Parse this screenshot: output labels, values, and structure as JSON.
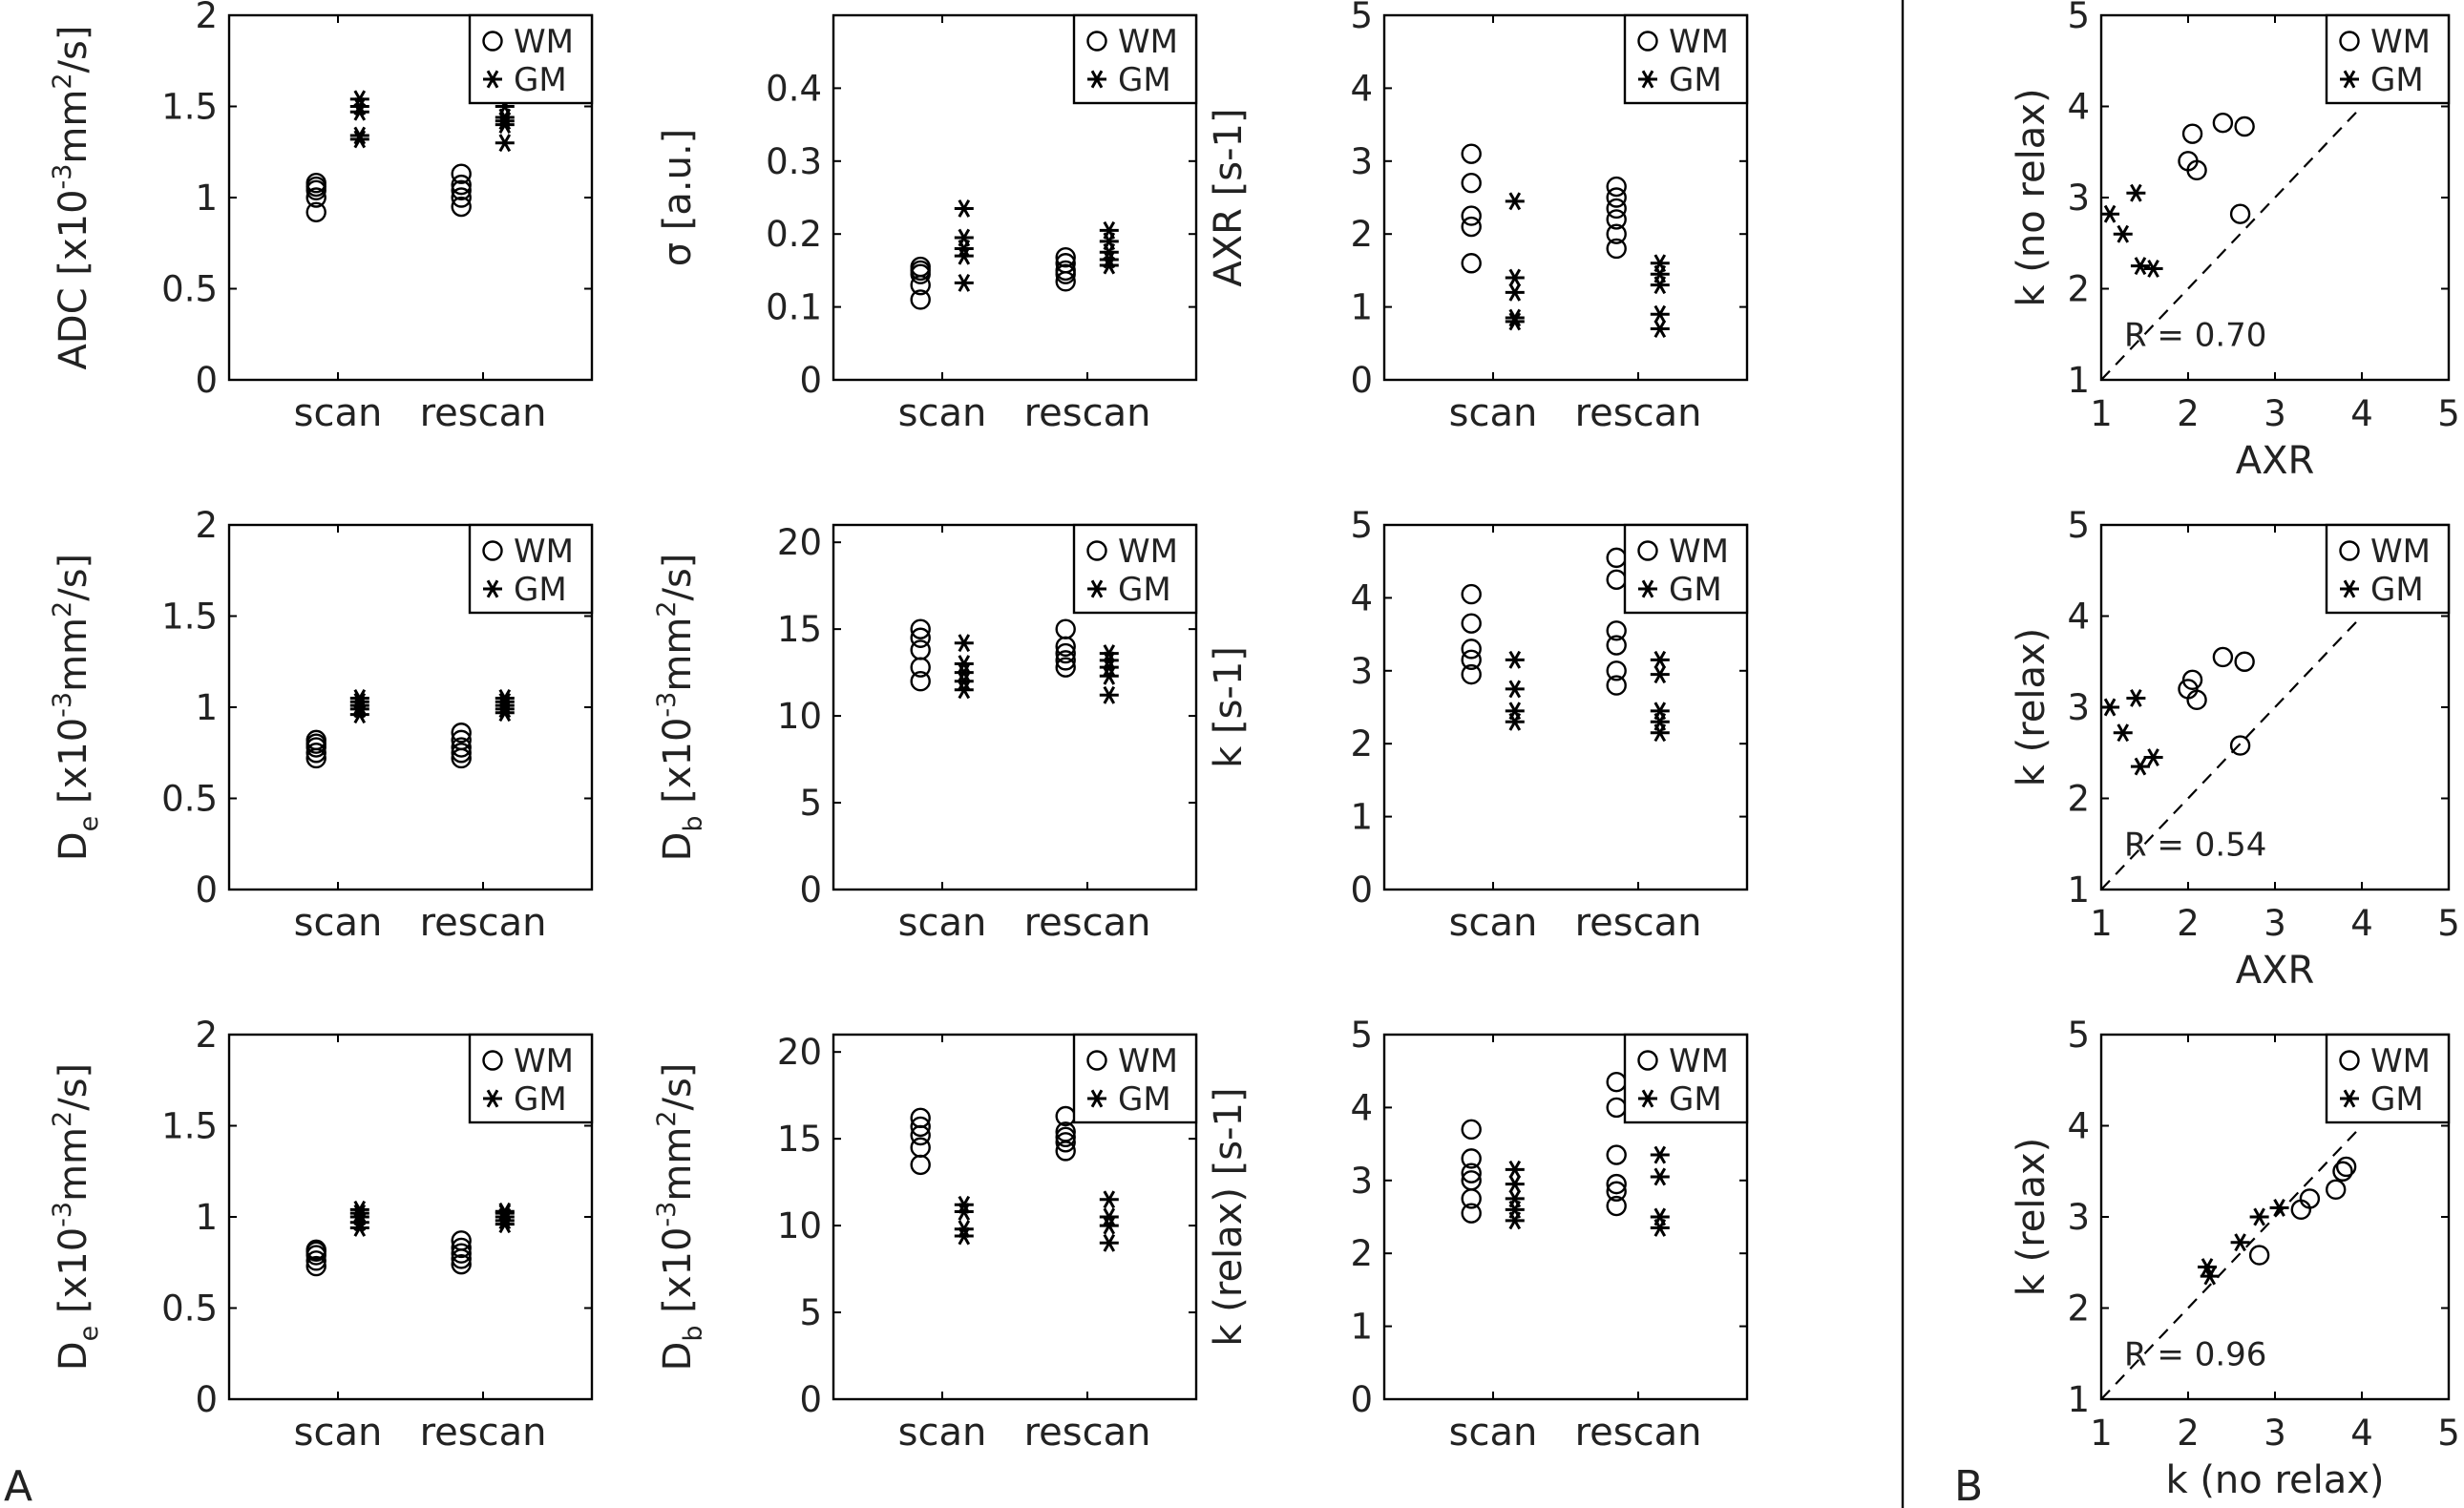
{
  "panel_labels": {
    "A": "A",
    "B": "B"
  },
  "legend": {
    "wm": "WM",
    "gm": "GM"
  },
  "chart_data": [
    {
      "type": "scatter",
      "ylabel_main": "ADC [x10",
      "ylabel_sup1": "-3",
      "ylabel_rest": "mm",
      "ylabel_sup2": "2",
      "ylabel_end": "/s]",
      "ylim": [
        0,
        2
      ],
      "yticks": [
        0,
        0.5,
        1,
        1.5,
        2
      ],
      "ytick_labels": [
        "0",
        "0.5",
        "1",
        "1.5",
        "2"
      ],
      "categories": [
        "scan",
        "rescan"
      ],
      "series": [
        {
          "name": "WM",
          "marker": "o",
          "values": [
            [
              0.92,
              1.0,
              1.04,
              1.06,
              1.08
            ],
            [
              0.95,
              1.0,
              1.04,
              1.07,
              1.13
            ]
          ]
        },
        {
          "name": "GM",
          "marker": "*",
          "values": [
            [
              1.32,
              1.34,
              1.47,
              1.5,
              1.54
            ],
            [
              1.3,
              1.4,
              1.42,
              1.44,
              1.5
            ]
          ]
        }
      ]
    },
    {
      "type": "scatter",
      "ylabel": "σ [a.u.]",
      "ylim": [
        0,
        0.5
      ],
      "yticks": [
        0,
        0.1,
        0.2,
        0.3,
        0.4
      ],
      "ytick_labels": [
        "0",
        "0.1",
        "0.2",
        "0.3",
        "0.4"
      ],
      "categories": [
        "scan",
        "rescan"
      ],
      "series": [
        {
          "name": "WM",
          "marker": "o",
          "values": [
            [
              0.11,
              0.13,
              0.145,
              0.15,
              0.155
            ],
            [
              0.135,
              0.145,
              0.15,
              0.16,
              0.168
            ]
          ]
        },
        {
          "name": "GM",
          "marker": "*",
          "values": [
            [
              0.133,
              0.17,
              0.18,
              0.195,
              0.235
            ],
            [
              0.157,
              0.165,
              0.175,
              0.19,
              0.205
            ]
          ]
        }
      ]
    },
    {
      "type": "scatter",
      "ylabel": "AXR [s-1]",
      "ylim": [
        0,
        5
      ],
      "yticks": [
        0,
        1,
        2,
        3,
        4,
        5
      ],
      "ytick_labels": [
        "0",
        "1",
        "2",
        "3",
        "4",
        "5"
      ],
      "categories": [
        "scan",
        "rescan"
      ],
      "series": [
        {
          "name": "WM",
          "marker": "o",
          "values": [
            [
              1.6,
              2.1,
              2.25,
              2.7,
              3.1
            ],
            [
              1.8,
              2.0,
              2.2,
              2.35,
              2.5,
              2.65
            ]
          ]
        },
        {
          "name": "GM",
          "marker": "*",
          "values": [
            [
              0.8,
              0.85,
              1.2,
              1.4,
              2.45
            ],
            [
              0.7,
              0.9,
              1.3,
              1.45,
              1.6
            ]
          ]
        }
      ]
    },
    {
      "type": "scatter",
      "ylabel_main": "D",
      "ylabel_sub": "e",
      "ylabel_mid": " [x10",
      "ylabel_sup1": "-3",
      "ylabel_rest": "mm",
      "ylabel_sup2": "2",
      "ylabel_end": "/s]",
      "ylim": [
        0,
        2
      ],
      "yticks": [
        0,
        0.5,
        1,
        1.5,
        2
      ],
      "ytick_labels": [
        "0",
        "0.5",
        "1",
        "1.5",
        "2"
      ],
      "categories": [
        "scan",
        "rescan"
      ],
      "series": [
        {
          "name": "WM",
          "marker": "o",
          "values": [
            [
              0.72,
              0.75,
              0.78,
              0.8,
              0.82
            ],
            [
              0.72,
              0.75,
              0.78,
              0.82,
              0.86
            ]
          ]
        },
        {
          "name": "GM",
          "marker": "*",
          "values": [
            [
              0.96,
              0.99,
              1.01,
              1.03,
              1.05
            ],
            [
              0.97,
              0.99,
              1.01,
              1.03,
              1.05
            ]
          ]
        }
      ]
    },
    {
      "type": "scatter",
      "ylabel_main": "D",
      "ylabel_sub": "b",
      "ylabel_mid": " [x10",
      "ylabel_sup1": "-3",
      "ylabel_rest": "mm",
      "ylabel_sup2": "2",
      "ylabel_end": "/s]",
      "ylim": [
        0,
        21
      ],
      "yticks": [
        0,
        5,
        10,
        15,
        20
      ],
      "ytick_labels": [
        "0",
        "5",
        "10",
        "15",
        "20"
      ],
      "categories": [
        "scan",
        "rescan"
      ],
      "series": [
        {
          "name": "WM",
          "marker": "o",
          "values": [
            [
              12.0,
              12.8,
              13.8,
              14.5,
              15.0
            ],
            [
              12.8,
              13.2,
              13.6,
              14.0,
              15.0
            ]
          ]
        },
        {
          "name": "GM",
          "marker": "*",
          "values": [
            [
              11.5,
              12.0,
              12.5,
              13.0,
              14.2
            ],
            [
              11.2,
              12.3,
              12.8,
              13.2,
              13.6
            ]
          ]
        }
      ]
    },
    {
      "type": "scatter",
      "ylabel": "k [s-1]",
      "ylim": [
        0,
        5
      ],
      "yticks": [
        0,
        1,
        2,
        3,
        4,
        5
      ],
      "ytick_labels": [
        "0",
        "1",
        "2",
        "3",
        "4",
        "5"
      ],
      "categories": [
        "scan",
        "rescan"
      ],
      "series": [
        {
          "name": "WM",
          "marker": "o",
          "values": [
            [
              2.95,
              3.15,
              3.3,
              3.65,
              4.05
            ],
            [
              2.8,
              3.0,
              3.35,
              3.55,
              4.25,
              4.55
            ]
          ]
        },
        {
          "name": "GM",
          "marker": "*",
          "values": [
            [
              2.3,
              2.45,
              2.75,
              3.15
            ],
            [
              2.15,
              2.3,
              2.45,
              2.95,
              3.15
            ]
          ]
        }
      ]
    },
    {
      "type": "scatter",
      "ylabel_main": "D",
      "ylabel_sub": "e",
      "ylabel_mid": " [x10",
      "ylabel_sup1": "-3",
      "ylabel_rest": "mm",
      "ylabel_sup2": "2",
      "ylabel_end": "/s]",
      "ylim": [
        0,
        2
      ],
      "yticks": [
        0,
        0.5,
        1,
        1.5,
        2
      ],
      "ytick_labels": [
        "0",
        "0.5",
        "1",
        "1.5",
        "2"
      ],
      "categories": [
        "scan",
        "rescan"
      ],
      "series": [
        {
          "name": "WM",
          "marker": "o",
          "values": [
            [
              0.73,
              0.76,
              0.79,
              0.81,
              0.82
            ],
            [
              0.74,
              0.77,
              0.8,
              0.83,
              0.87
            ]
          ]
        },
        {
          "name": "GM",
          "marker": "*",
          "values": [
            [
              0.94,
              0.97,
              1.0,
              1.02,
              1.04
            ],
            [
              0.96,
              0.98,
              1.0,
              1.02,
              1.03
            ]
          ]
        }
      ]
    },
    {
      "type": "scatter",
      "ylabel_main": "D",
      "ylabel_sub": "b",
      "ylabel_mid": " [x10",
      "ylabel_sup1": "-3",
      "ylabel_rest": "mm",
      "ylabel_sup2": "2",
      "ylabel_end": "/s]",
      "ylim": [
        0,
        21
      ],
      "yticks": [
        0,
        5,
        10,
        15,
        20
      ],
      "ytick_labels": [
        "0",
        "5",
        "10",
        "15",
        "20"
      ],
      "categories": [
        "scan",
        "rescan"
      ],
      "series": [
        {
          "name": "WM",
          "marker": "o",
          "values": [
            [
              13.5,
              14.5,
              15.2,
              15.7,
              16.2
            ],
            [
              14.3,
              14.8,
              15.1,
              15.4,
              16.3
            ]
          ]
        },
        {
          "name": "GM",
          "marker": "*",
          "values": [
            [
              9.4,
              9.8,
              10.8,
              11.2
            ],
            [
              9.0,
              10.0,
              10.5,
              11.5
            ]
          ]
        }
      ]
    },
    {
      "type": "scatter",
      "ylabel": "k (relax) [s-1]",
      "ylim": [
        0,
        5
      ],
      "yticks": [
        0,
        1,
        2,
        3,
        4,
        5
      ],
      "ytick_labels": [
        "0",
        "1",
        "2",
        "3",
        "4",
        "5"
      ],
      "categories": [
        "scan",
        "rescan"
      ],
      "series": [
        {
          "name": "WM",
          "marker": "o",
          "values": [
            [
              2.55,
              2.75,
              3.0,
              3.1,
              3.3,
              3.7
            ],
            [
              2.65,
              2.85,
              2.95,
              3.35,
              4.0,
              4.35
            ]
          ]
        },
        {
          "name": "GM",
          "marker": "*",
          "values": [
            [
              2.45,
              2.6,
              2.75,
              2.95,
              3.15
            ],
            [
              2.35,
              2.5,
              3.05,
              3.35
            ]
          ]
        }
      ]
    },
    {
      "type": "scatter",
      "xlabel": "AXR",
      "ylabel": "k (no relax)",
      "xlim": [
        1,
        5
      ],
      "ylim": [
        1,
        5
      ],
      "xticks": [
        1,
        2,
        3,
        4,
        5
      ],
      "yticks": [
        1,
        2,
        3,
        4,
        5
      ],
      "xtick_labels": [
        "1",
        "2",
        "3",
        "4",
        "5"
      ],
      "ytick_labels": [
        "1",
        "2",
        "3",
        "4",
        "5"
      ],
      "annotation": "R = 0.70",
      "identity_line": true,
      "series": [
        {
          "name": "WM",
          "marker": "o",
          "x": [
            2.0,
            2.05,
            2.1,
            2.4,
            2.6,
            2.65
          ],
          "y": [
            3.4,
            3.7,
            3.3,
            3.82,
            2.82,
            3.78
          ]
        },
        {
          "name": "GM",
          "marker": "*",
          "x": [
            1.1,
            1.25,
            1.4,
            1.45,
            1.6
          ],
          "y": [
            2.82,
            2.6,
            3.05,
            2.25,
            2.22
          ]
        }
      ]
    },
    {
      "type": "scatter",
      "xlabel": "AXR",
      "ylabel": "k (relax)",
      "xlim": [
        1,
        5
      ],
      "ylim": [
        1,
        5
      ],
      "xticks": [
        1,
        2,
        3,
        4,
        5
      ],
      "yticks": [
        1,
        2,
        3,
        4,
        5
      ],
      "xtick_labels": [
        "1",
        "2",
        "3",
        "4",
        "5"
      ],
      "ytick_labels": [
        "1",
        "2",
        "3",
        "4",
        "5"
      ],
      "annotation": "R = 0.54",
      "identity_line": true,
      "series": [
        {
          "name": "WM",
          "marker": "o",
          "x": [
            2.0,
            2.05,
            2.1,
            2.4,
            2.6,
            2.65
          ],
          "y": [
            3.2,
            3.3,
            3.08,
            3.55,
            2.58,
            3.5
          ]
        },
        {
          "name": "GM",
          "marker": "*",
          "x": [
            1.1,
            1.25,
            1.4,
            1.45,
            1.6
          ],
          "y": [
            3.0,
            2.72,
            3.1,
            2.35,
            2.45
          ]
        }
      ]
    },
    {
      "type": "scatter",
      "xlabel": "k (no relax)",
      "ylabel": "k (relax)",
      "xlim": [
        1,
        5
      ],
      "ylim": [
        1,
        5
      ],
      "xticks": [
        1,
        2,
        3,
        4,
        5
      ],
      "yticks": [
        1,
        2,
        3,
        4,
        5
      ],
      "xtick_labels": [
        "1",
        "2",
        "3",
        "4",
        "5"
      ],
      "ytick_labels": [
        "1",
        "2",
        "3",
        "4",
        "5"
      ],
      "annotation": "R = 0.96",
      "identity_line": true,
      "series": [
        {
          "name": "WM",
          "marker": "o",
          "x": [
            2.82,
            3.3,
            3.4,
            3.7,
            3.78,
            3.82
          ],
          "y": [
            2.58,
            3.08,
            3.2,
            3.3,
            3.5,
            3.55
          ]
        },
        {
          "name": "GM",
          "marker": "*",
          "x": [
            2.22,
            2.25,
            2.6,
            2.82,
            3.05
          ],
          "y": [
            2.45,
            2.35,
            2.72,
            3.0,
            3.1
          ]
        }
      ]
    }
  ]
}
